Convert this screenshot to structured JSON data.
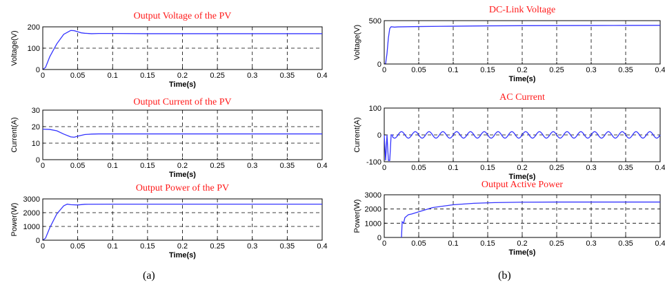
{
  "panel_labels": [
    "(a)",
    "(b)"
  ],
  "chart_data": [
    {
      "type": "line",
      "title": "Output Voltage of the PV",
      "xlabel": "Time(s)",
      "ylabel": "Voltage(V)",
      "xlim": [
        0,
        0.4
      ],
      "ylim": [
        0,
        200
      ],
      "xticks": [
        0,
        0.05,
        0.1,
        0.15,
        0.2,
        0.25,
        0.3,
        0.35,
        0.4
      ],
      "xtick_labels": [
        "0",
        "0.05",
        "0.1",
        "0.15",
        "0.2",
        "0.25",
        "0.3",
        "0.35",
        "0.4"
      ],
      "yticks": [
        0,
        100,
        200
      ],
      "ytick_labels": [
        "0",
        "100",
        "200"
      ],
      "grid": true,
      "line_color": "#3333ff",
      "x": [
        0,
        0.004,
        0.01,
        0.02,
        0.03,
        0.04,
        0.045,
        0.05,
        0.055,
        0.06,
        0.07,
        0.08,
        0.1,
        0.15,
        0.2,
        0.25,
        0.3,
        0.35,
        0.4
      ],
      "y": [
        0,
        10,
        60,
        120,
        165,
        183,
        182,
        177,
        172,
        170,
        168,
        169,
        169,
        168,
        168,
        168,
        168,
        168,
        168
      ]
    },
    {
      "type": "line",
      "title": "Output Current of the PV",
      "xlabel": "Time(s)",
      "ylabel": "Current(A)",
      "xlim": [
        0,
        0.4
      ],
      "ylim": [
        0,
        30
      ],
      "xticks": [
        0,
        0.05,
        0.1,
        0.15,
        0.2,
        0.25,
        0.3,
        0.35,
        0.4
      ],
      "xtick_labels": [
        "0",
        "0.05",
        "0.1",
        "0.15",
        "0.2",
        "0.25",
        "0.3",
        "0.35",
        "0.4"
      ],
      "yticks": [
        0,
        10,
        20,
        30
      ],
      "ytick_labels": [
        "0",
        "10",
        "20",
        "30"
      ],
      "grid": true,
      "line_color": "#3333ff",
      "x": [
        0,
        0.01,
        0.02,
        0.03,
        0.04,
        0.045,
        0.05,
        0.06,
        0.07,
        0.08,
        0.1,
        0.2,
        0.3,
        0.4
      ],
      "y": [
        18.5,
        18.3,
        17.5,
        15.5,
        13.8,
        13.6,
        14.2,
        15.2,
        15.5,
        15.6,
        15.6,
        15.6,
        15.6,
        15.6
      ]
    },
    {
      "type": "line",
      "title": "Output Power of the PV",
      "xlabel": "Time(s)",
      "ylabel": "Power(W)",
      "xlim": [
        0,
        0.4
      ],
      "ylim": [
        0,
        3000
      ],
      "xticks": [
        0,
        0.05,
        0.1,
        0.15,
        0.2,
        0.25,
        0.3,
        0.35,
        0.4
      ],
      "xtick_labels": [
        "0",
        "0.05",
        "0.1",
        "0.15",
        "0.2",
        "0.25",
        "0.3",
        "0.35",
        "0.4"
      ],
      "yticks": [
        0,
        1000,
        2000,
        3000
      ],
      "ytick_labels": [
        "0",
        "1000",
        "2000",
        "3000"
      ],
      "grid": true,
      "line_color": "#3333ff",
      "x": [
        0,
        0.004,
        0.01,
        0.02,
        0.03,
        0.035,
        0.04,
        0.05,
        0.06,
        0.1,
        0.2,
        0.3,
        0.4
      ],
      "y": [
        0,
        150,
        900,
        1900,
        2500,
        2620,
        2580,
        2560,
        2610,
        2620,
        2620,
        2620,
        2620
      ]
    },
    {
      "type": "line",
      "title": "DC-Link Voltage",
      "xlabel": "Time(s)",
      "ylabel": "Voltage(V)",
      "xlim": [
        0,
        0.4
      ],
      "ylim": [
        0,
        500
      ],
      "xticks": [
        0,
        0.05,
        0.1,
        0.15,
        0.2,
        0.25,
        0.3,
        0.35,
        0.4
      ],
      "xtick_labels": [
        "0",
        "0.05",
        "0.1",
        "0.15",
        "0.2",
        "0.25",
        "0.3",
        "0.35",
        "0.4"
      ],
      "yticks": [
        0,
        500
      ],
      "ytick_labels": [
        "0",
        "500"
      ],
      "grid": true,
      "line_color": "#3333ff",
      "x": [
        0,
        0.002,
        0.004,
        0.006,
        0.008,
        0.01,
        0.015,
        0.02,
        0.05,
        0.1,
        0.15,
        0.2,
        0.25,
        0.3,
        0.35,
        0.4
      ],
      "y": [
        0,
        5,
        120,
        300,
        410,
        430,
        425,
        428,
        432,
        436,
        440,
        442,
        443,
        444,
        445,
        446
      ]
    },
    {
      "type": "line",
      "title": "AC Current",
      "xlabel": "Time(s)",
      "ylabel": "Current(A)",
      "xlim": [
        0,
        0.4
      ],
      "ylim": [
        -100,
        100
      ],
      "xticks": [
        0,
        0.05,
        0.1,
        0.15,
        0.2,
        0.25,
        0.3,
        0.35,
        0.4
      ],
      "xtick_labels": [
        "0",
        "0.05",
        "0.1",
        "0.15",
        "0.2",
        "0.25",
        "0.3",
        "0.35",
        "0.4"
      ],
      "yticks": [
        -100,
        0,
        100
      ],
      "ytick_labels": [
        "-100",
        "0",
        "100"
      ],
      "grid": true,
      "line_color": "#3333ff",
      "transient": {
        "x": [
          0,
          0.002,
          0.004,
          0.006,
          0.008,
          0.01,
          0.012
        ],
        "y": [
          0,
          -95,
          0,
          -95,
          -95,
          0,
          0
        ]
      },
      "waveform": "sine",
      "steady_start": 0.012,
      "amplitude": 12,
      "frequency_hz": 50
    },
    {
      "type": "line",
      "title": "Output Active Power",
      "xlabel": "Time(s)",
      "ylabel": "Power(W)",
      "xlim": [
        0,
        0.4
      ],
      "ylim": [
        0,
        3000
      ],
      "xticks": [
        0,
        0.05,
        0.1,
        0.15,
        0.2,
        0.25,
        0.3,
        0.35,
        0.4
      ],
      "xtick_labels": [
        "0",
        "0.05",
        "0.1",
        "0.15",
        "0.2",
        "0.25",
        "0.3",
        "0.35",
        "0.4"
      ],
      "yticks": [
        0,
        1000,
        2000,
        3000
      ],
      "ytick_labels": [
        "0",
        "1000",
        "2000",
        "3000"
      ],
      "grid": true,
      "line_color": "#3333ff",
      "x": [
        0.025,
        0.026,
        0.028,
        0.03,
        0.035,
        0.04,
        0.05,
        0.07,
        0.1,
        0.13,
        0.16,
        0.2,
        0.25,
        0.3,
        0.35,
        0.4
      ],
      "y": [
        0,
        1100,
        1000,
        1400,
        1600,
        1650,
        1800,
        2100,
        2300,
        2400,
        2450,
        2480,
        2490,
        2490,
        2490,
        2490
      ]
    }
  ]
}
